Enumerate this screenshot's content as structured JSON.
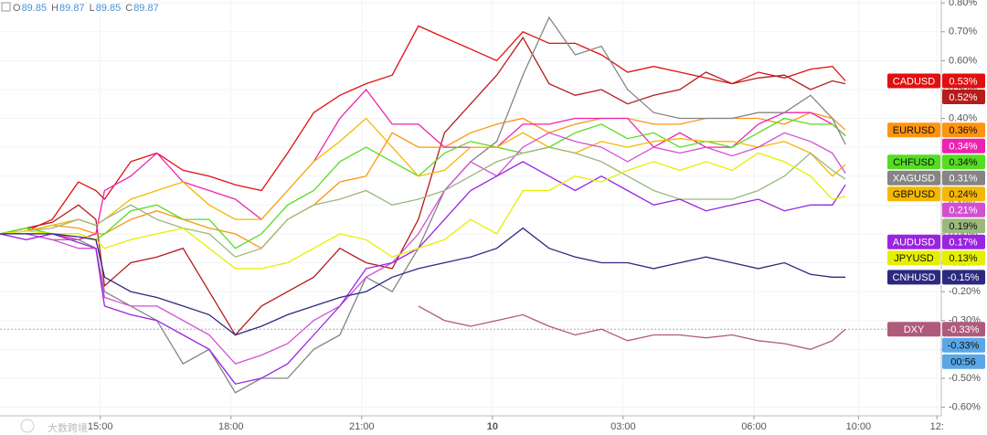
{
  "chart_data": {
    "type": "line",
    "ohlc": [
      {
        "key": "O",
        "value": 89.85
      },
      {
        "key": "H",
        "value": 89.87
      },
      {
        "key": "L",
        "value": 89.85
      },
      {
        "key": "C",
        "value": 89.87
      }
    ],
    "watermark": "大数跨境",
    "x": [
      12.7,
      13.3,
      13.9,
      14.5,
      14.9,
      15.1,
      15.7,
      16.3,
      16.9,
      17.5,
      18.1,
      18.7,
      19.3,
      19.9,
      20.5,
      21.1,
      21.7,
      22.3,
      22.9,
      23.5,
      24.1,
      24.7,
      25.3,
      25.9,
      26.5,
      27.1,
      27.7,
      28.3,
      28.9,
      29.5,
      30.1,
      30.7,
      31.3,
      31.8,
      32.1
    ],
    "xlim": [
      12.7,
      34.3
    ],
    "xticks": [
      {
        "value": 15,
        "label": "15:00"
      },
      {
        "value": 18,
        "label": "18:00"
      },
      {
        "value": 21,
        "label": "21:00"
      },
      {
        "value": 24,
        "label": "10"
      },
      {
        "value": 27,
        "label": "03:00"
      },
      {
        "value": 30,
        "label": "06:00"
      },
      {
        "value": 32.4,
        "label": "10:00"
      },
      {
        "value": 34.2,
        "label": "12:"
      }
    ],
    "ylim": [
      -0.63,
      0.81
    ],
    "yticks": [
      {
        "value": 0.8,
        "label": "0.80%"
      },
      {
        "value": 0.7,
        "label": "0.70%"
      },
      {
        "value": 0.6,
        "label": "0.60%"
      },
      {
        "value": 0.5,
        "label": "0.50%"
      },
      {
        "value": 0.4,
        "label": "0.40%"
      },
      {
        "value": 0.3,
        "label": "0.30%"
      },
      {
        "value": 0.2,
        "label": "0.20%"
      },
      {
        "value": 0.1,
        "label": "0.10%"
      },
      {
        "value": 0,
        "label": "0.00%"
      },
      {
        "value": -0.1,
        "label": "-0.10%"
      },
      {
        "value": -0.2,
        "label": "-0.20%"
      },
      {
        "value": -0.3,
        "label": "-0.30%"
      },
      {
        "value": -0.4,
        "label": "-0.40%"
      },
      {
        "value": -0.5,
        "label": "-0.50%"
      },
      {
        "value": -0.6,
        "label": "-0.60%"
      }
    ],
    "grid": true,
    "series": [
      {
        "name": "CADUSD",
        "color": "#e01010",
        "end_label": "0.53%",
        "values": [
          0,
          0.01,
          0.05,
          0.18,
          0.15,
          0.12,
          0.25,
          0.28,
          0.22,
          0.2,
          0.17,
          0.15,
          0.28,
          0.42,
          0.48,
          0.52,
          0.55,
          0.72,
          0.68,
          0.64,
          0.6,
          0.7,
          0.66,
          0.66,
          0.62,
          0.56,
          0.58,
          0.56,
          0.54,
          0.52,
          0.56,
          0.54,
          0.57,
          0.58,
          0.53
        ]
      },
      {
        "color": "#b51c1c",
        "end_label": "0.52%",
        "values": [
          0,
          0.02,
          0.04,
          0.1,
          0.05,
          -0.18,
          -0.1,
          -0.08,
          -0.05,
          -0.2,
          -0.35,
          -0.25,
          -0.2,
          -0.15,
          -0.05,
          -0.1,
          -0.12,
          0.05,
          0.35,
          0.45,
          0.55,
          0.68,
          0.52,
          0.48,
          0.5,
          0.45,
          0.48,
          0.5,
          0.56,
          0.52,
          0.54,
          0.55,
          0.5,
          0.53,
          0.52
        ]
      },
      {
        "name": "EURUSD",
        "color": "#ff9410",
        "end_label": "0.36%",
        "values": [
          0,
          0.01,
          0.03,
          0.02,
          0,
          0,
          0.05,
          0.08,
          0.05,
          0.02,
          0,
          -0.05,
          0.05,
          0.1,
          0.18,
          0.2,
          0.35,
          0.3,
          0.3,
          0.35,
          0.38,
          0.4,
          0.35,
          0.38,
          0.4,
          0.4,
          0.38,
          0.38,
          0.4,
          0.4,
          0.4,
          0.38,
          0.42,
          0.4,
          0.36
        ]
      },
      {
        "color": "#ee22b0",
        "end_label": "0.34%",
        "values": [
          0,
          0,
          0,
          -0.02,
          0,
          0.15,
          0.2,
          0.28,
          0.18,
          0.15,
          0.12,
          0.05,
          0.15,
          0.25,
          0.4,
          0.5,
          0.38,
          0.38,
          0.3,
          0.3,
          0.3,
          0.38,
          0.38,
          0.4,
          0.4,
          0.4,
          0.3,
          0.35,
          0.3,
          0.3,
          0.38,
          0.42,
          0.42,
          0.38,
          0.34
        ]
      },
      {
        "name": "CHFUSD",
        "color": "#55dd22",
        "end_label": "0.34%",
        "values": [
          0,
          0.02,
          0,
          0,
          -0.02,
          0,
          0.08,
          0.1,
          0.05,
          0.05,
          -0.05,
          0,
          0.1,
          0.15,
          0.25,
          0.3,
          0.25,
          0.2,
          0.28,
          0.32,
          0.3,
          0.28,
          0.3,
          0.35,
          0.38,
          0.33,
          0.35,
          0.3,
          0.32,
          0.3,
          0.35,
          0.4,
          0.38,
          0.38,
          0.34
        ]
      },
      {
        "name": "XAGUSD",
        "color": "#858585",
        "end_label": "0.31%",
        "values": [
          0,
          0,
          -0.02,
          -0.02,
          -0.05,
          -0.2,
          -0.25,
          -0.3,
          -0.45,
          -0.4,
          -0.55,
          -0.5,
          -0.5,
          -0.4,
          -0.35,
          -0.15,
          -0.2,
          -0.05,
          0.15,
          0.25,
          0.32,
          0.55,
          0.75,
          0.62,
          0.65,
          0.5,
          0.42,
          0.4,
          0.4,
          0.4,
          0.42,
          0.42,
          0.48,
          0.4,
          0.31
        ]
      },
      {
        "name": "GBPUSD",
        "color": "#f5b800",
        "end_label": "0.24%",
        "values": [
          0,
          0.01,
          0.03,
          0.05,
          0.03,
          0.05,
          0.12,
          0.15,
          0.18,
          0.1,
          0.05,
          0.05,
          0.15,
          0.25,
          0.32,
          0.4,
          0.3,
          0.2,
          0.22,
          0.3,
          0.3,
          0.35,
          0.3,
          0.28,
          0.32,
          0.3,
          0.32,
          0.33,
          0.32,
          0.32,
          0.3,
          0.32,
          0.28,
          0.2,
          0.24
        ]
      },
      {
        "color": "#d24fd2",
        "end_label": "0.21%",
        "values": [
          0,
          0,
          -0.02,
          -0.05,
          -0.05,
          -0.22,
          -0.25,
          -0.25,
          -0.3,
          -0.35,
          -0.45,
          -0.42,
          -0.38,
          -0.3,
          -0.25,
          -0.15,
          -0.1,
          0,
          0.15,
          0.25,
          0.2,
          0.3,
          0.35,
          0.32,
          0.3,
          0.25,
          0.3,
          0.28,
          0.3,
          0.27,
          0.3,
          0.35,
          0.32,
          0.28,
          0.21
        ]
      },
      {
        "color": "#9cb87c",
        "end_label": "0.19%",
        "values": [
          0,
          0.01,
          0.02,
          0.05,
          0.03,
          0.05,
          0.1,
          0.05,
          0.02,
          0,
          -0.08,
          -0.05,
          0.05,
          0.1,
          0.12,
          0.15,
          0.1,
          0.12,
          0.15,
          0.2,
          0.25,
          0.28,
          0.3,
          0.28,
          0.25,
          0.2,
          0.15,
          0.12,
          0.12,
          0.12,
          0.15,
          0.2,
          0.28,
          0.22,
          0.19
        ]
      },
      {
        "name": "AUDUSD",
        "color": "#9a24e0",
        "end_label": "0.17%",
        "values": [
          0,
          -0.02,
          0,
          -0.03,
          -0.05,
          -0.25,
          -0.28,
          -0.3,
          -0.35,
          -0.4,
          -0.52,
          -0.5,
          -0.45,
          -0.35,
          -0.25,
          -0.12,
          -0.1,
          -0.05,
          0.05,
          0.15,
          0.2,
          0.25,
          0.2,
          0.15,
          0.2,
          0.15,
          0.1,
          0.12,
          0.08,
          0.1,
          0.12,
          0.08,
          0.1,
          0.1,
          0.17
        ]
      },
      {
        "name": "JPYUSD",
        "color": "#e6ef00",
        "end_label": "0.13%",
        "values": [
          0,
          0.01,
          0,
          0,
          -0.02,
          -0.05,
          -0.02,
          0,
          0.02,
          -0.05,
          -0.12,
          -0.12,
          -0.1,
          -0.05,
          0,
          -0.02,
          -0.08,
          -0.05,
          -0.02,
          0.05,
          0,
          0.15,
          0.15,
          0.2,
          0.18,
          0.22,
          0.25,
          0.22,
          0.25,
          0.22,
          0.28,
          0.25,
          0.2,
          0.12,
          0.13
        ]
      },
      {
        "name": "CNHUSD",
        "color": "#2c2a80",
        "end_label": "-0.15%",
        "values": [
          0,
          0,
          0,
          -0.01,
          -0.02,
          -0.15,
          -0.2,
          -0.22,
          -0.25,
          -0.28,
          -0.35,
          -0.32,
          -0.28,
          -0.25,
          -0.22,
          -0.2,
          -0.15,
          -0.12,
          -0.1,
          -0.08,
          -0.05,
          0.02,
          -0.05,
          -0.08,
          -0.1,
          -0.1,
          -0.12,
          -0.1,
          -0.08,
          -0.1,
          -0.12,
          -0.1,
          -0.14,
          -0.15,
          -0.15
        ]
      },
      {
        "name": "DXY",
        "color": "#b05a7a",
        "end_label": "-0.33%",
        "values": [
          null,
          null,
          null,
          null,
          null,
          null,
          null,
          null,
          null,
          null,
          null,
          null,
          null,
          null,
          null,
          null,
          null,
          -0.25,
          -0.3,
          -0.32,
          -0.3,
          -0.28,
          -0.32,
          -0.35,
          -0.33,
          -0.37,
          -0.35,
          -0.35,
          -0.36,
          -0.35,
          -0.37,
          -0.38,
          -0.4,
          -0.37,
          -0.33
        ]
      }
    ],
    "crosshair": {
      "value": -0.33,
      "label": "-0.33%",
      "color": "#5aa7e8"
    },
    "countdown": "00:56"
  }
}
